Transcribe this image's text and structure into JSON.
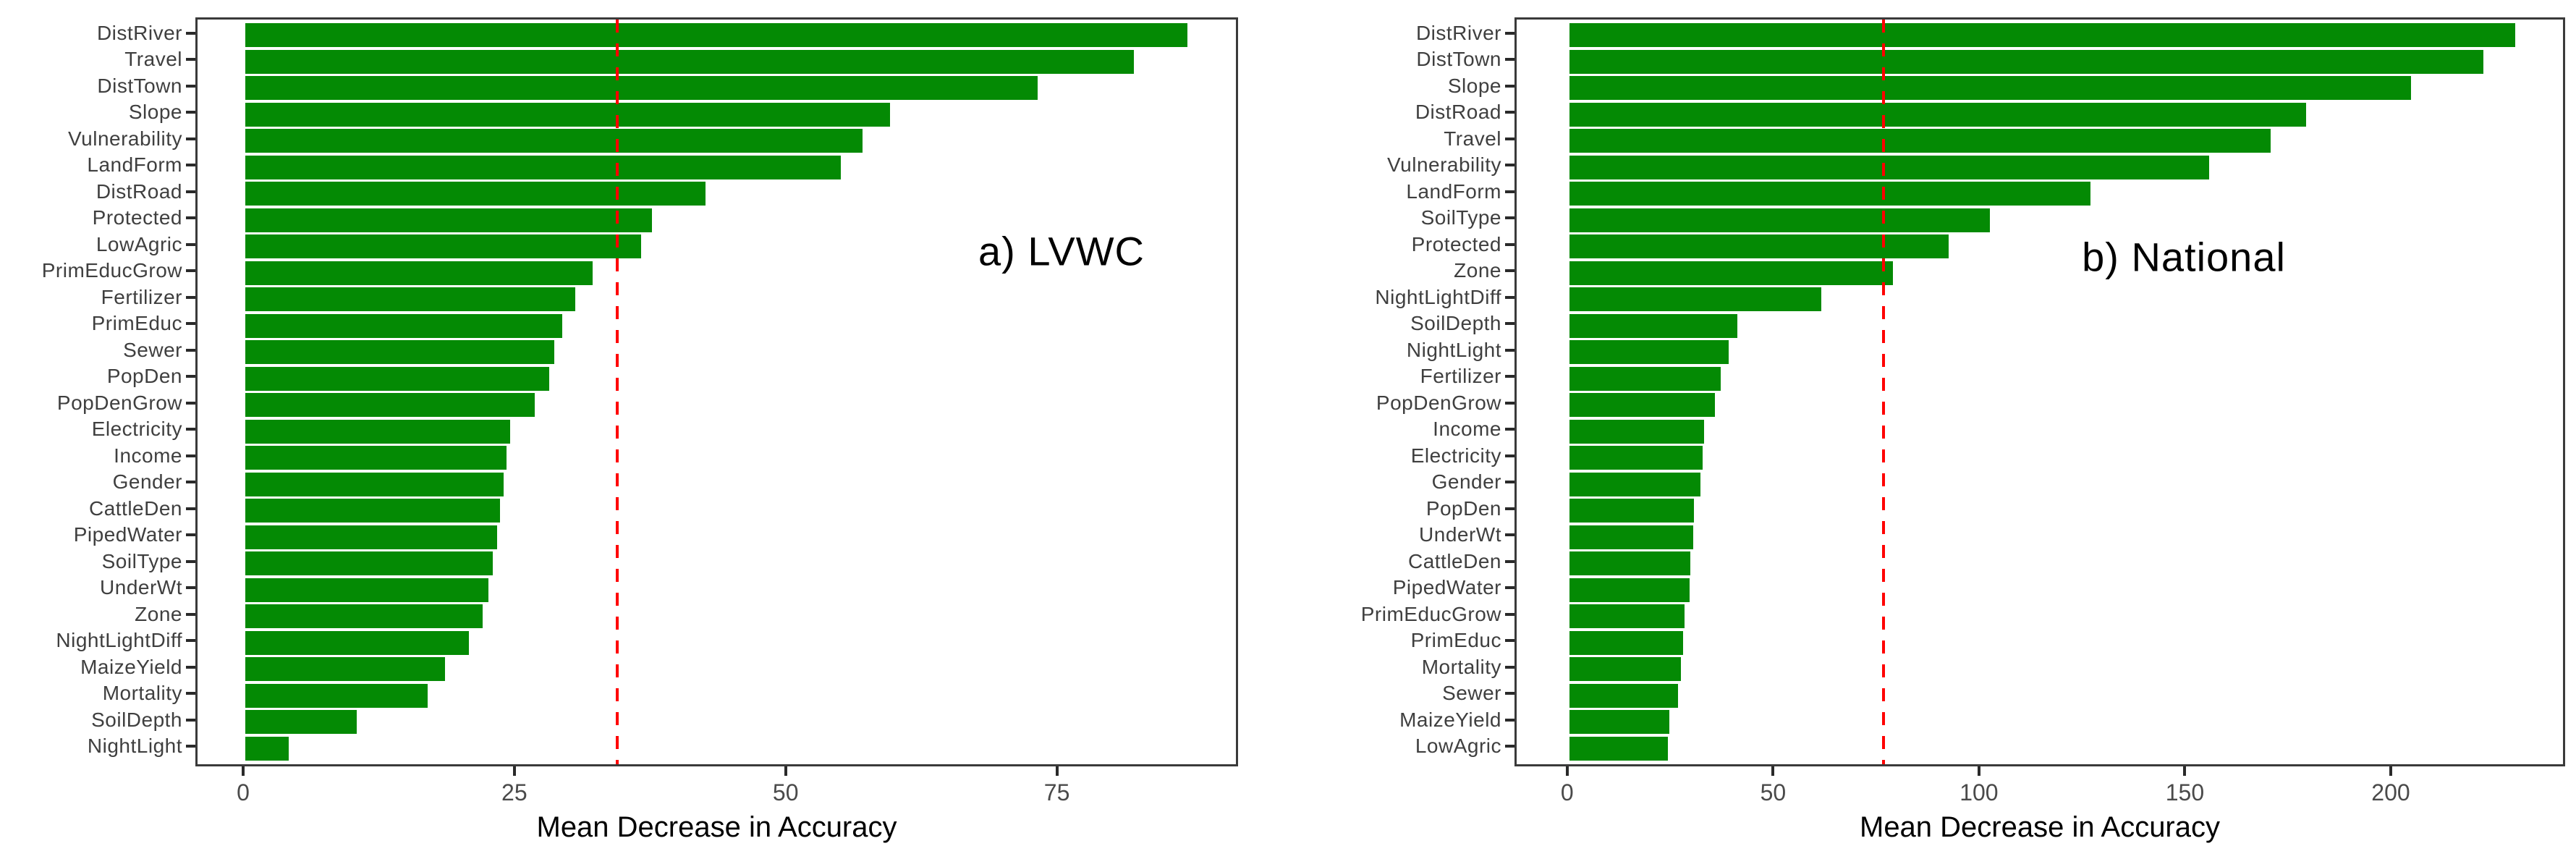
{
  "figure": {
    "background": "#ffffff"
  },
  "chart_data": [
    {
      "type": "bar",
      "orientation": "horizontal",
      "panel_label": "a) LVWC",
      "xlabel": "Mean Decrease in Accuracy",
      "bar_color": "#048a04",
      "grid": false,
      "legend": "none",
      "xticks": [
        0,
        25,
        50,
        75
      ],
      "xlim_panel": [
        -4.4,
        91.3
      ],
      "threshold_line": {
        "value": 34.3,
        "color": "#ff0000",
        "style": "dashed"
      },
      "categories": [
        "DistRiver",
        "Travel",
        "DistTown",
        "Slope",
        "Vulnerability",
        "LandForm",
        "DistRoad",
        "Protected",
        "LowAgric",
        "PrimEducGrow",
        "Fertilizer",
        "PrimEduc",
        "Sewer",
        "PopDen",
        "PopDenGrow",
        "Electricity",
        "Income",
        "Gender",
        "CattleDen",
        "PipedWater",
        "SoilType",
        "UnderWt",
        "Zone",
        "NightLightDiff",
        "MaizeYield",
        "Mortality",
        "SoilDepth",
        "NightLight"
      ],
      "values": [
        86.8,
        81.9,
        73.0,
        59.4,
        56.9,
        54.9,
        42.4,
        37.5,
        36.5,
        32.0,
        30.4,
        29.2,
        28.5,
        28.0,
        26.7,
        24.4,
        24.1,
        23.8,
        23.5,
        23.2,
        22.8,
        22.4,
        21.9,
        20.6,
        18.4,
        16.8,
        10.3,
        4.0
      ]
    },
    {
      "type": "bar",
      "orientation": "horizontal",
      "panel_label": "b) National",
      "xlabel": "Mean Decrease in Accuracy",
      "bar_color": "#048a04",
      "grid": false,
      "legend": "none",
      "xticks": [
        0,
        50,
        100,
        150,
        200
      ],
      "xlim_panel": [
        -12.8,
        241.3
      ],
      "threshold_line": {
        "value": 76.3,
        "color": "#ff0000",
        "style": "dashed"
      },
      "categories": [
        "DistRiver",
        "DistTown",
        "Slope",
        "DistRoad",
        "Travel",
        "Vulnerability",
        "LandForm",
        "SoilType",
        "Protected",
        "Zone",
        "NightLightDiff",
        "SoilDepth",
        "NightLight",
        "Fertilizer",
        "PopDenGrow",
        "Income",
        "Electricity",
        "Gender",
        "PopDen",
        "UnderWt",
        "CattleDen",
        "PipedWater",
        "PrimEducGrow",
        "PrimEduc",
        "Mortality",
        "Sewer",
        "MaizeYield",
        "LowAgric"
      ],
      "values": [
        229.7,
        221.9,
        204.4,
        179.0,
        170.3,
        155.4,
        126.6,
        102.1,
        92.1,
        78.5,
        61.1,
        40.8,
        38.7,
        36.8,
        35.4,
        32.8,
        32.4,
        31.9,
        30.3,
        30.0,
        29.3,
        29.2,
        28.0,
        27.7,
        27.1,
        26.4,
        24.3,
        24.0
      ]
    }
  ]
}
